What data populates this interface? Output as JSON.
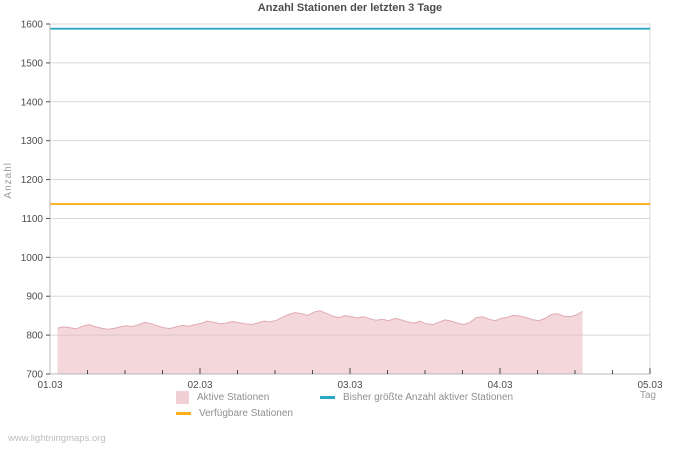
{
  "title": "Anzahl Stationen der letzten 3 Tage",
  "watermark": "www.lightningmaps.org",
  "axes": {
    "ylabel": "Anzahl",
    "xlabel": "Tag",
    "y_ticks": [
      700,
      800,
      900,
      1000,
      1100,
      1200,
      1300,
      1400,
      1500,
      1600
    ],
    "x_ticks": [
      "01.03",
      "02.03",
      "03.03",
      "04.03",
      "05.03"
    ]
  },
  "legend": [
    {
      "label": "Aktive Stationen",
      "swatch": "square",
      "color": "#f0d0d5"
    },
    {
      "label": "Bisher größte Anzahl aktiver Stationen",
      "swatch": "line",
      "color": "#2ba6c6"
    },
    {
      "label": "Verfügbare Stationen",
      "swatch": "line",
      "color": "#fbaf1b"
    }
  ],
  "colors": {
    "area_fill": "#e9b0b8",
    "area_stroke": "#e0aab2",
    "max_line": "#2ba6c6",
    "available_line": "#fbaf1b",
    "grid": "#d8d8d8",
    "axis": "#b9b9b9",
    "tick": "#4d4d4d"
  },
  "chart_data": {
    "type": "area",
    "title": "Anzahl Stationen der letzten 3 Tage",
    "xlabel": "Tag",
    "ylabel": "Anzahl",
    "ylim": [
      700,
      1600
    ],
    "x_tick_labels": [
      "01.03",
      "02.03",
      "03.03",
      "04.03",
      "05.03"
    ],
    "x_minor_tick_hours": 6,
    "grid": true,
    "legend_position": "bottom",
    "series": [
      {
        "name": "Aktive Stationen",
        "type": "area",
        "baseline": 700,
        "start_day": 0.05,
        "interval_hours": 1,
        "values": [
          818,
          821,
          819,
          816,
          823,
          827,
          822,
          818,
          815,
          817,
          821,
          824,
          822,
          827,
          833,
          829,
          824,
          819,
          817,
          821,
          825,
          823,
          827,
          830,
          836,
          833,
          829,
          831,
          835,
          832,
          829,
          827,
          831,
          836,
          834,
          838,
          846,
          853,
          858,
          855,
          851,
          859,
          863,
          856,
          849,
          845,
          850,
          847,
          844,
          847,
          842,
          838,
          841,
          837,
          843,
          839,
          834,
          831,
          836,
          829,
          827,
          833,
          839,
          836,
          831,
          827,
          833,
          845,
          847,
          841,
          837,
          843,
          846,
          851,
          849,
          845,
          840,
          837,
          843,
          853,
          855,
          849,
          847,
          852,
          861
        ]
      },
      {
        "name": "Bisher größte Anzahl aktiver Stationen",
        "type": "hline",
        "value": 1588
      },
      {
        "name": "Verfügbare Stationen",
        "type": "hline",
        "value": 1137
      }
    ]
  }
}
